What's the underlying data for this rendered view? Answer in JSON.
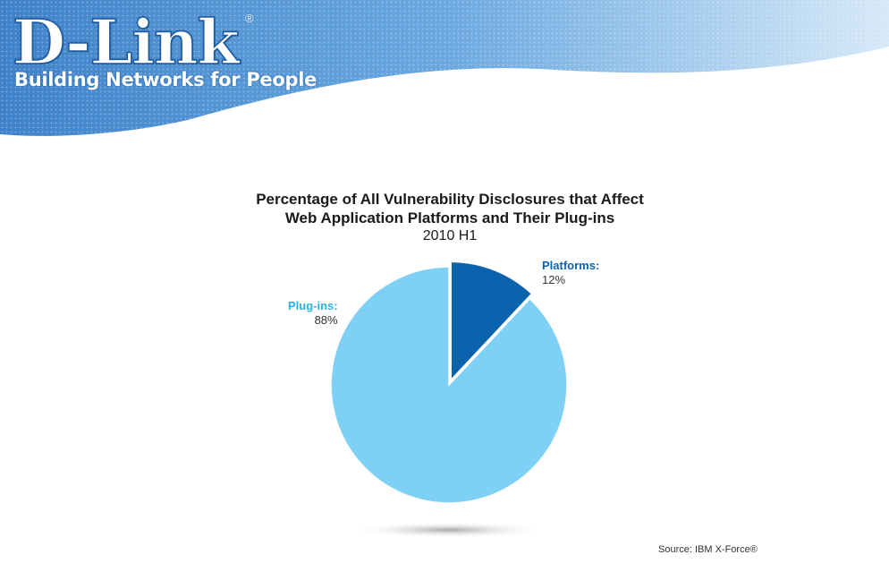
{
  "brand": {
    "logo": "D-Link",
    "registered": "®",
    "tagline": "Building Networks for People"
  },
  "colors": {
    "banner_blue": "#4d8fd0",
    "platforms": "#0b63ae",
    "plugins": "#7fd0f5"
  },
  "chart_data": {
    "type": "pie",
    "title_line1": "Percentage of All Vulnerability Disclosures that Affect",
    "title_line2": "Web Application Platforms and Their Plug-ins",
    "subtitle": "2010 H1",
    "slices": [
      {
        "name": "Platforms:",
        "value": 12,
        "value_label": "12%",
        "color": "#0b63ae",
        "exploded": true
      },
      {
        "name": "Plug-ins:",
        "value": 88,
        "value_label": "88%",
        "color": "#7fd0f5",
        "exploded": false
      }
    ],
    "legend": "labels next to slices"
  },
  "source": "Source: IBM X-Force®"
}
